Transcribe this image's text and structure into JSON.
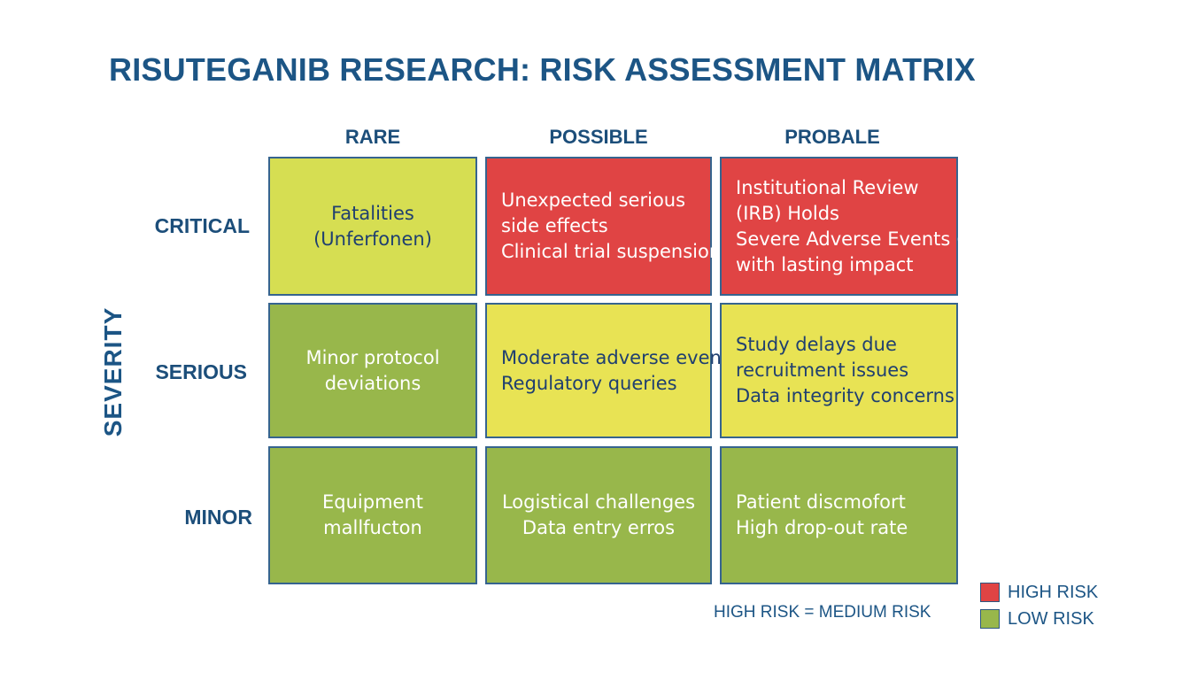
{
  "title": "RISUTEGANIB RESEARCH: RISK ASSESSMENT MATRIX",
  "axis_label": "SEVERITY",
  "columns": [
    "RARE",
    "POSSIBLE",
    "PROBALE"
  ],
  "rows": [
    "CRITICAL",
    "SERIOUS",
    "MINOR"
  ],
  "cells": [
    [
      {
        "risk": "medium",
        "lines": [
          "Fatalities",
          "(Unferfonen)"
        ]
      },
      {
        "risk": "high",
        "lines": [
          "Unexpected serious",
          "side effects",
          "Clinical trial suspension"
        ]
      },
      {
        "risk": "high",
        "lines": [
          "Institutional Review",
          "(IRB) Holds",
          "Severe Adverse Events (SAE)",
          "with lasting impact"
        ]
      }
    ],
    [
      {
        "risk": "low",
        "lines": [
          "Minor protocol",
          "deviations"
        ]
      },
      {
        "risk": "medium",
        "lines": [
          "Moderate adverse events",
          "Regulatory queries"
        ]
      },
      {
        "risk": "medium",
        "lines": [
          "Study delays due",
          "recruitment issues",
          "Data integrity concerns"
        ]
      }
    ],
    [
      {
        "risk": "low",
        "lines": [
          "Equipment",
          "mallfucton"
        ]
      },
      {
        "risk": "low",
        "lines": [
          "Logistical challenges",
          "Data entry erros"
        ]
      },
      {
        "risk": "low",
        "lines": [
          "Patient discmofort",
          "High drop-out rate"
        ]
      }
    ]
  ],
  "legend": [
    {
      "label": "HIGH RISK",
      "color": "#e04444"
    },
    {
      "label": "LOW RISK",
      "color": "#98b74b"
    }
  ],
  "note": "HIGH RISK = MEDIUM RISK"
}
